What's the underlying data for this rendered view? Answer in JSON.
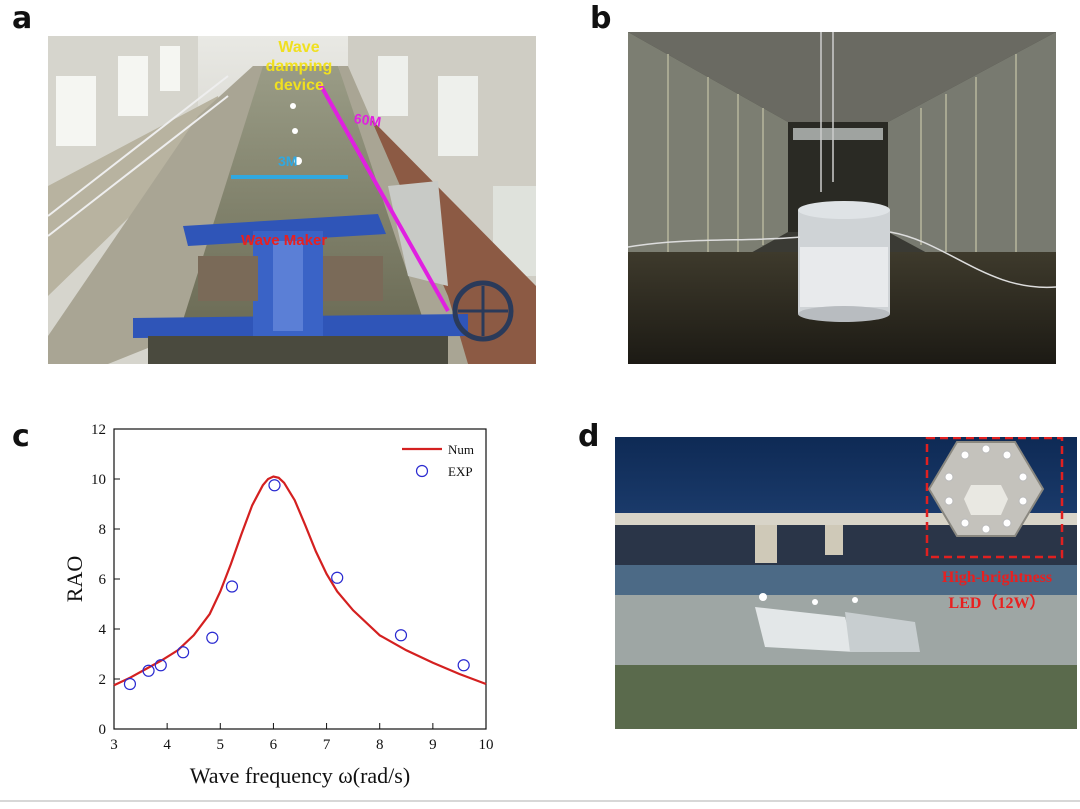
{
  "panels": {
    "a": {
      "letter": "a",
      "labels": {
        "wave_damping_line1": "Wave",
        "wave_damping_line2": "damping",
        "wave_damping_line3": "device",
        "length": "60M",
        "width": "3M",
        "wave_maker": "Wave Maker"
      }
    },
    "b": {
      "letter": "b"
    },
    "c": {
      "letter": "c"
    },
    "d": {
      "letter": "d",
      "labels": {
        "led_line1": "High-brightness",
        "led_line2": "LED（12W）"
      }
    }
  },
  "colors": {
    "annotation_yellow": "#f0e020",
    "annotation_magenta": "#e020e0",
    "annotation_cyan": "#30a8e0",
    "annotation_red": "#e82020",
    "curve_red": "#d42020",
    "marker_blue": "#2a2ad0"
  },
  "chart_data": {
    "type": "line",
    "xlabel": "Wave frequency ω(rad/s)",
    "ylabel": "RAO",
    "xlim": [
      3,
      10
    ],
    "ylim": [
      0,
      12
    ],
    "xticks": [
      "3",
      "4",
      "5",
      "6",
      "7",
      "8",
      "9",
      "10"
    ],
    "yticks": [
      "0",
      "2",
      "4",
      "6",
      "8",
      "10",
      "12"
    ],
    "legend_position": "top-right",
    "series": [
      {
        "name": "Num",
        "kind": "line",
        "x": [
          3.0,
          3.3,
          3.6,
          3.9,
          4.2,
          4.5,
          4.8,
          5.0,
          5.2,
          5.4,
          5.6,
          5.8,
          5.9,
          6.0,
          6.1,
          6.2,
          6.4,
          6.6,
          6.8,
          7.0,
          7.2,
          7.5,
          8.0,
          8.5,
          9.0,
          9.5,
          10.0
        ],
        "y": [
          1.75,
          2.05,
          2.4,
          2.75,
          3.15,
          3.75,
          4.6,
          5.5,
          6.6,
          7.8,
          8.95,
          9.75,
          10.0,
          10.1,
          10.05,
          9.85,
          9.15,
          8.15,
          7.1,
          6.2,
          5.5,
          4.75,
          3.75,
          3.15,
          2.65,
          2.2,
          1.8
        ]
      },
      {
        "name": "EXP",
        "kind": "scatter",
        "x": [
          3.3,
          3.65,
          3.88,
          4.3,
          4.85,
          5.22,
          6.02,
          7.2,
          8.4,
          9.58
        ],
        "y": [
          1.8,
          2.33,
          2.55,
          3.07,
          3.65,
          5.7,
          9.75,
          6.05,
          3.75,
          2.55
        ]
      }
    ]
  }
}
